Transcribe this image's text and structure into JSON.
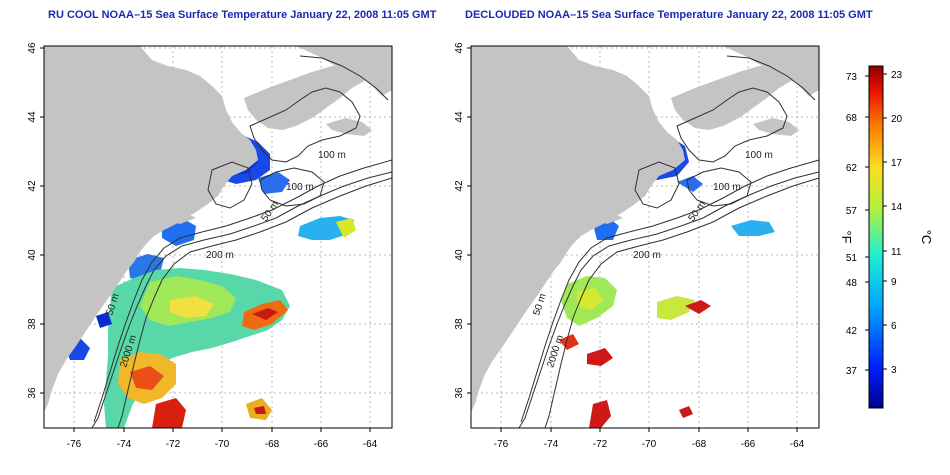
{
  "panels": [
    {
      "title": "RU COOL NOAA–15 Sea Surface Temperature January 22, 2008 11:05 GMT",
      "x_ticks": [
        "-76",
        "-74",
        "-72",
        "-70",
        "-68",
        "-66",
        "-64"
      ],
      "y_ticks": [
        "36",
        "38",
        "40",
        "42",
        "44",
        "46"
      ],
      "contour_labels": [
        "100 m",
        "100 m",
        "50 m",
        "200 m",
        "50 m",
        "2000 m"
      ]
    },
    {
      "title": "DECLOUDED NOAA–15 Sea Surface Temperature January 22, 2008 11:05 GMT",
      "x_ticks": [
        "-76",
        "-74",
        "-72",
        "-70",
        "-68",
        "-66",
        "-64"
      ],
      "y_ticks": [
        "36",
        "38",
        "40",
        "42",
        "44",
        "46"
      ],
      "contour_labels": [
        "100 m",
        "100 m",
        "50 m",
        "200 m",
        "50 m",
        "2000 m"
      ]
    }
  ],
  "colorbar": {
    "fahrenheit_ticks": [
      "73",
      "68",
      "62",
      "57",
      "51",
      "48",
      "42",
      "37"
    ],
    "celsius_ticks": [
      "23",
      "20",
      "17",
      "14",
      "11",
      "9",
      "6",
      "3"
    ],
    "fahrenheit_label": "°F",
    "celsius_label": "°C"
  },
  "colors": {
    "land": "#c4c4c4",
    "frame": "#000000",
    "grid": "#b8b8b8",
    "title": "#1a2bb0",
    "sst_cold": "#0a2cd8",
    "sst_warm": "#c81414"
  }
}
